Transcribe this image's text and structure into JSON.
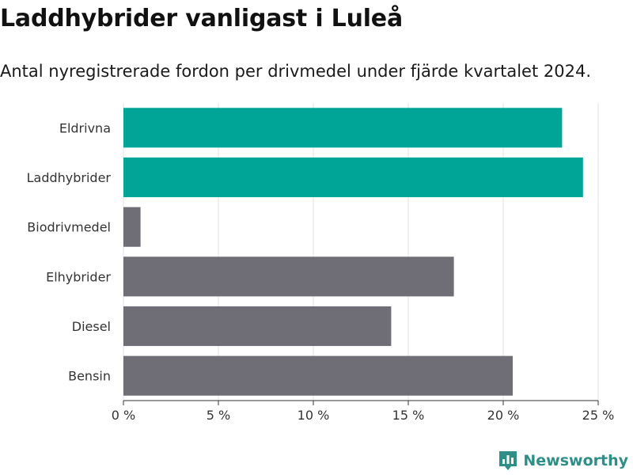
{
  "header": {
    "title": "Laddhybrider vanligast i Luleå",
    "subtitle": "Antal nyregistrerade fordon per drivmedel under fjärde kvartalet 2024."
  },
  "brand": {
    "name": "Newsworthy",
    "icon": "bar-chart-speech-bubble-icon",
    "color": "#2f8f86"
  },
  "colors": {
    "highlight": "#00a597",
    "default": "#6f6e76",
    "grid": "#e3e3e3",
    "axis": "#333333"
  },
  "chart_data": {
    "type": "bar",
    "orientation": "horizontal",
    "categories": [
      "Eldrivna",
      "Laddhybrider",
      "Biodrivmedel",
      "Elhybrider",
      "Diesel",
      "Bensin"
    ],
    "values": [
      23.1,
      24.2,
      0.9,
      17.4,
      14.1,
      20.5
    ],
    "highlighted": [
      true,
      true,
      false,
      false,
      false,
      false
    ],
    "xlim": [
      0,
      25
    ],
    "xticks": [
      0,
      5,
      10,
      15,
      20,
      25
    ],
    "xtick_labels": [
      "0 %",
      "5 %",
      "10 %",
      "15 %",
      "20 %",
      "25 %"
    ],
    "grid": true,
    "unit": "%"
  }
}
